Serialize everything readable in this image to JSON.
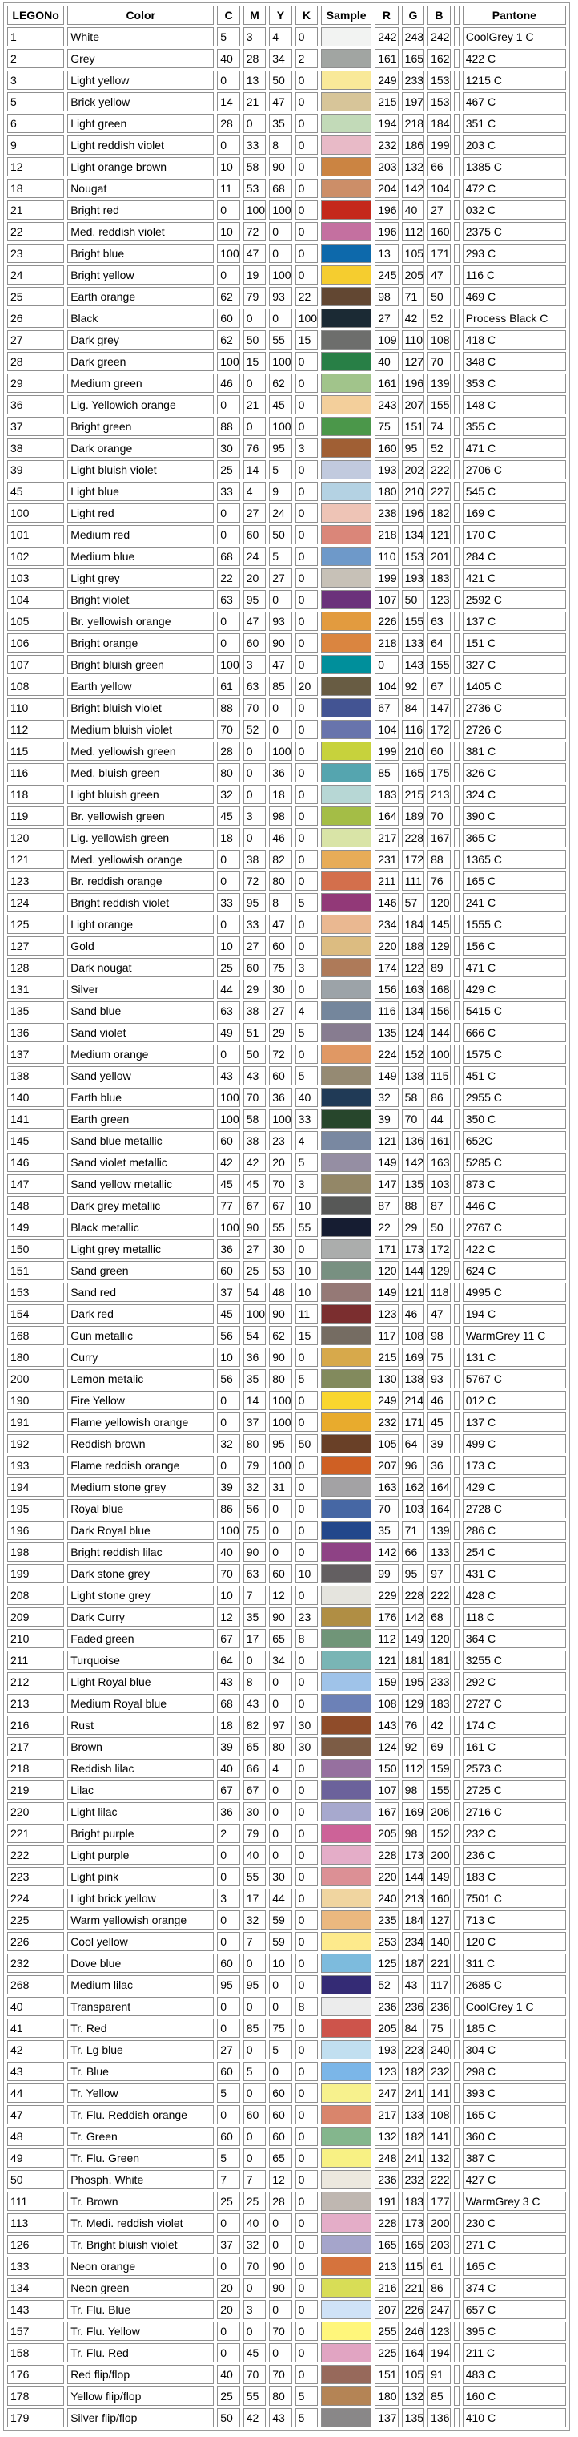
{
  "table": {
    "columns": [
      "LEGONo",
      "Color",
      "C",
      "M",
      "Y",
      "K",
      "Sample",
      "R",
      "G",
      "B",
      "",
      "Pantone"
    ],
    "rows": [
      [
        "1",
        "White",
        "5",
        "3",
        "4",
        "0",
        "242",
        "243",
        "242",
        "CoolGrey 1 C"
      ],
      [
        "2",
        "Grey",
        "40",
        "28",
        "34",
        "2",
        "161",
        "165",
        "162",
        "422 C"
      ],
      [
        "3",
        "Light yellow",
        "0",
        "13",
        "50",
        "0",
        "249",
        "233",
        "153",
        "1215 C"
      ],
      [
        "5",
        "Brick yellow",
        "14",
        "21",
        "47",
        "0",
        "215",
        "197",
        "153",
        "467 C"
      ],
      [
        "6",
        "Light green",
        "28",
        "0",
        "35",
        "0",
        "194",
        "218",
        "184",
        "351 C"
      ],
      [
        "9",
        "Light reddish violet",
        "0",
        "33",
        "8",
        "0",
        "232",
        "186",
        "199",
        "203 C"
      ],
      [
        "12",
        "Light orange brown",
        "10",
        "58",
        "90",
        "0",
        "203",
        "132",
        "66",
        "1385 C"
      ],
      [
        "18",
        "Nougat",
        "11",
        "53",
        "68",
        "0",
        "204",
        "142",
        "104",
        "472 C"
      ],
      [
        "21",
        "Bright red",
        "0",
        "100",
        "100",
        "0",
        "196",
        "40",
        "27",
        "032 C"
      ],
      [
        "22",
        "Med. reddish violet",
        "10",
        "72",
        "0",
        "0",
        "196",
        "112",
        "160",
        "2375 C"
      ],
      [
        "23",
        "Bright blue",
        "100",
        "47",
        "0",
        "0",
        "13",
        "105",
        "171",
        "293 C"
      ],
      [
        "24",
        "Bright yellow",
        "0",
        "19",
        "100",
        "0",
        "245",
        "205",
        "47",
        "116 C"
      ],
      [
        "25",
        "Earth orange",
        "62",
        "79",
        "93",
        "22",
        "98",
        "71",
        "50",
        "469 C"
      ],
      [
        "26",
        "Black",
        "60",
        "0",
        "0",
        "100",
        "27",
        "42",
        "52",
        "Process Black C"
      ],
      [
        "27",
        "Dark grey",
        "62",
        "50",
        "55",
        "15",
        "109",
        "110",
        "108",
        "418 C"
      ],
      [
        "28",
        "Dark green",
        "100",
        "15",
        "100",
        "0",
        "40",
        "127",
        "70",
        "348 C"
      ],
      [
        "29",
        "Medium green",
        "46",
        "0",
        "62",
        "0",
        "161",
        "196",
        "139",
        "353 C"
      ],
      [
        "36",
        "Lig. Yellowich orange",
        "0",
        "21",
        "45",
        "0",
        "243",
        "207",
        "155",
        "148 C"
      ],
      [
        "37",
        "Bright green",
        "88",
        "0",
        "100",
        "0",
        "75",
        "151",
        "74",
        "355 C"
      ],
      [
        "38",
        "Dark orange",
        "30",
        "76",
        "95",
        "3",
        "160",
        "95",
        "52",
        "471 C"
      ],
      [
        "39",
        "Light bluish violet",
        "25",
        "14",
        "5",
        "0",
        "193",
        "202",
        "222",
        "2706 C"
      ],
      [
        "45",
        "Light blue",
        "33",
        "4",
        "9",
        "0",
        "180",
        "210",
        "227",
        "545 C"
      ],
      [
        "100",
        "Light red",
        "0",
        "27",
        "24",
        "0",
        "238",
        "196",
        "182",
        "169 C"
      ],
      [
        "101",
        "Medium red",
        "0",
        "60",
        "50",
        "0",
        "218",
        "134",
        "121",
        "170 C"
      ],
      [
        "102",
        "Medium blue",
        "68",
        "24",
        "5",
        "0",
        "110",
        "153",
        "201",
        "284 C"
      ],
      [
        "103",
        "Light grey",
        "22",
        "20",
        "27",
        "0",
        "199",
        "193",
        "183",
        "421 C"
      ],
      [
        "104",
        "Bright violet",
        "63",
        "95",
        "0",
        "0",
        "107",
        "50",
        "123",
        "2592 C"
      ],
      [
        "105",
        "Br. yellowish orange",
        "0",
        "47",
        "93",
        "0",
        "226",
        "155",
        "63",
        "137 C"
      ],
      [
        "106",
        "Bright orange",
        "0",
        "60",
        "90",
        "0",
        "218",
        "133",
        "64",
        "151 C"
      ],
      [
        "107",
        "Bright bluish green",
        "100",
        "3",
        "47",
        "0",
        "0",
        "143",
        "155",
        "327 C"
      ],
      [
        "108",
        "Earth yellow",
        "61",
        "63",
        "85",
        "20",
        "104",
        "92",
        "67",
        "1405 C"
      ],
      [
        "110",
        "Bright bluish violet",
        "88",
        "70",
        "0",
        "0",
        "67",
        "84",
        "147",
        "2736 C"
      ],
      [
        "112",
        "Medium bluish violet",
        "70",
        "52",
        "0",
        "0",
        "104",
        "116",
        "172",
        "2726 C"
      ],
      [
        "115",
        "Med. yellowish green",
        "28",
        "0",
        "100",
        "0",
        "199",
        "210",
        "60",
        "381 C"
      ],
      [
        "116",
        "Med. bluish green",
        "80",
        "0",
        "36",
        "0",
        "85",
        "165",
        "175",
        "326 C"
      ],
      [
        "118",
        "Light bluish green",
        "32",
        "0",
        "18",
        "0",
        "183",
        "215",
        "213",
        "324 C"
      ],
      [
        "119",
        "Br. yellowish green",
        "45",
        "3",
        "98",
        "0",
        "164",
        "189",
        "70",
        "390 C"
      ],
      [
        "120",
        "Lig. yellowish green",
        "18",
        "0",
        "46",
        "0",
        "217",
        "228",
        "167",
        "365 C"
      ],
      [
        "121",
        "Med. yellowish orange",
        "0",
        "38",
        "82",
        "0",
        "231",
        "172",
        "88",
        "1365 C"
      ],
      [
        "123",
        "Br. reddish orange",
        "0",
        "72",
        "80",
        "0",
        "211",
        "111",
        "76",
        "165 C"
      ],
      [
        "124",
        "Bright reddish violet",
        "33",
        "95",
        "8",
        "5",
        "146",
        "57",
        "120",
        "241 C"
      ],
      [
        "125",
        "Light orange",
        "0",
        "33",
        "47",
        "0",
        "234",
        "184",
        "145",
        "1555 C"
      ],
      [
        "127",
        "Gold",
        "10",
        "27",
        "60",
        "0",
        "220",
        "188",
        "129",
        "156 C"
      ],
      [
        "128",
        "Dark nougat",
        "25",
        "60",
        "75",
        "3",
        "174",
        "122",
        "89",
        "471 C"
      ],
      [
        "131",
        "Silver",
        "44",
        "29",
        "30",
        "0",
        "156",
        "163",
        "168",
        "429 C"
      ],
      [
        "135",
        "Sand blue",
        "63",
        "38",
        "27",
        "4",
        "116",
        "134",
        "156",
        "5415 C"
      ],
      [
        "136",
        "Sand violet",
        "49",
        "51",
        "29",
        "5",
        "135",
        "124",
        "144",
        "666 C"
      ],
      [
        "137",
        "Medium orange",
        "0",
        "50",
        "72",
        "0",
        "224",
        "152",
        "100",
        "1575 C"
      ],
      [
        "138",
        "Sand yellow",
        "43",
        "43",
        "60",
        "5",
        "149",
        "138",
        "115",
        "451 C"
      ],
      [
        "140",
        "Earth blue",
        "100",
        "70",
        "36",
        "40",
        "32",
        "58",
        "86",
        "2955 C"
      ],
      [
        "141",
        "Earth green",
        "100",
        "58",
        "100",
        "33",
        "39",
        "70",
        "44",
        "350 C"
      ],
      [
        "145",
        "Sand blue metallic",
        "60",
        "38",
        "23",
        "4",
        "121",
        "136",
        "161",
        "652C"
      ],
      [
        "146",
        "Sand violet metallic",
        "42",
        "42",
        "20",
        "5",
        "149",
        "142",
        "163",
        "5285 C"
      ],
      [
        "147",
        "Sand yellow metallic",
        "45",
        "45",
        "70",
        "3",
        "147",
        "135",
        "103",
        "873 C"
      ],
      [
        "148",
        "Dark grey metallic",
        "77",
        "67",
        "67",
        "10",
        "87",
        "88",
        "87",
        "446 C"
      ],
      [
        "149",
        "Black metallic",
        "100",
        "90",
        "55",
        "55",
        "22",
        "29",
        "50",
        "2767 C"
      ],
      [
        "150",
        "Light grey metallic",
        "36",
        "27",
        "30",
        "0",
        "171",
        "173",
        "172",
        "422 C"
      ],
      [
        "151",
        "Sand green",
        "60",
        "25",
        "53",
        "10",
        "120",
        "144",
        "129",
        "624 C"
      ],
      [
        "153",
        "Sand red",
        "37",
        "54",
        "48",
        "10",
        "149",
        "121",
        "118",
        "4995 C"
      ],
      [
        "154",
        "Dark red",
        "45",
        "100",
        "90",
        "11",
        "123",
        "46",
        "47",
        "194 C"
      ],
      [
        "168",
        "Gun metallic",
        "56",
        "54",
        "62",
        "15",
        "117",
        "108",
        "98",
        "WarmGrey 11 C"
      ],
      [
        "180",
        "Curry",
        "10",
        "36",
        "90",
        "0",
        "215",
        "169",
        "75",
        "131 C"
      ],
      [
        "200",
        "Lemon metalic",
        "56",
        "35",
        "80",
        "5",
        "130",
        "138",
        "93",
        "5767 C"
      ],
      [
        "190",
        "Fire Yellow",
        "0",
        "14",
        "100",
        "0",
        "249",
        "214",
        "46",
        "012 C"
      ],
      [
        "191",
        "Flame yellowish orange",
        "0",
        "37",
        "100",
        "0",
        "232",
        "171",
        "45",
        "137 C"
      ],
      [
        "192",
        "Reddish brown",
        "32",
        "80",
        "95",
        "50",
        "105",
        "64",
        "39",
        "499 C"
      ],
      [
        "193",
        "Flame reddish orange",
        "0",
        "79",
        "100",
        "0",
        "207",
        "96",
        "36",
        "173 C"
      ],
      [
        "194",
        "Medium stone grey",
        "39",
        "32",
        "31",
        "0",
        "163",
        "162",
        "164",
        "429 C"
      ],
      [
        "195",
        "Royal blue",
        "86",
        "56",
        "0",
        "0",
        "70",
        "103",
        "164",
        "2728 C"
      ],
      [
        "196",
        "Dark Royal blue",
        "100",
        "75",
        "0",
        "0",
        "35",
        "71",
        "139",
        "286 C"
      ],
      [
        "198",
        "Bright reddish lilac",
        "40",
        "90",
        "0",
        "0",
        "142",
        "66",
        "133",
        "254 C"
      ],
      [
        "199",
        "Dark stone grey",
        "70",
        "63",
        "60",
        "10",
        "99",
        "95",
        "97",
        "431 C"
      ],
      [
        "208",
        "Light stone grey",
        "10",
        "7",
        "12",
        "0",
        "229",
        "228",
        "222",
        "428 C"
      ],
      [
        "209",
        "Dark Curry",
        "12",
        "35",
        "90",
        "23",
        "176",
        "142",
        "68",
        "118 C"
      ],
      [
        "210",
        "Faded green",
        "67",
        "17",
        "65",
        "8",
        "112",
        "149",
        "120",
        "364 C"
      ],
      [
        "211",
        "Turquoise",
        "64",
        "0",
        "34",
        "0",
        "121",
        "181",
        "181",
        "3255 C"
      ],
      [
        "212",
        "Light Royal blue",
        "43",
        "8",
        "0",
        "0",
        "159",
        "195",
        "233",
        "292 C"
      ],
      [
        "213",
        "Medium Royal blue",
        "68",
        "43",
        "0",
        "0",
        "108",
        "129",
        "183",
        "2727 C"
      ],
      [
        "216",
        "Rust",
        "18",
        "82",
        "97",
        "30",
        "143",
        "76",
        "42",
        "174 C"
      ],
      [
        "217",
        "Brown",
        "39",
        "65",
        "80",
        "30",
        "124",
        "92",
        "69",
        "161 C"
      ],
      [
        "218",
        "Reddish lilac",
        "40",
        "66",
        "4",
        "0",
        "150",
        "112",
        "159",
        "2573 C"
      ],
      [
        "219",
        "Lilac",
        "67",
        "67",
        "0",
        "0",
        "107",
        "98",
        "155",
        "2725 C"
      ],
      [
        "220",
        "Light lilac",
        "36",
        "30",
        "0",
        "0",
        "167",
        "169",
        "206",
        "2716 C"
      ],
      [
        "221",
        "Bright purple",
        "2",
        "79",
        "0",
        "0",
        "205",
        "98",
        "152",
        "232 C"
      ],
      [
        "222",
        "Light purple",
        "0",
        "40",
        "0",
        "0",
        "228",
        "173",
        "200",
        "236 C"
      ],
      [
        "223",
        "Light pink",
        "0",
        "55",
        "30",
        "0",
        "220",
        "144",
        "149",
        "183 C"
      ],
      [
        "224",
        "Light brick yellow",
        "3",
        "17",
        "44",
        "0",
        "240",
        "213",
        "160",
        "7501 C"
      ],
      [
        "225",
        "Warm yellowish orange",
        "0",
        "32",
        "59",
        "0",
        "235",
        "184",
        "127",
        "713 C"
      ],
      [
        "226",
        "Cool yellow",
        "0",
        "7",
        "59",
        "0",
        "253",
        "234",
        "140",
        "120 C"
      ],
      [
        "232",
        "Dove blue",
        "60",
        "0",
        "10",
        "0",
        "125",
        "187",
        "221",
        "311 C"
      ],
      [
        "268",
        "Medium lilac",
        "95",
        "95",
        "0",
        "0",
        "52",
        "43",
        "117",
        "2685 C"
      ],
      [
        "40",
        "Transparent",
        "0",
        "0",
        "0",
        "8",
        "236",
        "236",
        "236",
        "CoolGrey 1 C"
      ],
      [
        "41",
        "Tr. Red",
        "0",
        "85",
        "75",
        "0",
        "205",
        "84",
        "75",
        "185 C"
      ],
      [
        "42",
        "Tr. Lg blue",
        "27",
        "0",
        "5",
        "0",
        "193",
        "223",
        "240",
        "304 C"
      ],
      [
        "43",
        "Tr. Blue",
        "60",
        "5",
        "0",
        "0",
        "123",
        "182",
        "232",
        "298 C"
      ],
      [
        "44",
        "Tr. Yellow",
        "5",
        "0",
        "60",
        "0",
        "247",
        "241",
        "141",
        "393 C"
      ],
      [
        "47",
        "Tr. Flu. Reddish orange",
        "0",
        "60",
        "60",
        "0",
        "217",
        "133",
        "108",
        "165 C"
      ],
      [
        "48",
        "Tr. Green",
        "60",
        "0",
        "60",
        "0",
        "132",
        "182",
        "141",
        "360 C"
      ],
      [
        "49",
        "Tr. Flu. Green",
        "5",
        "0",
        "65",
        "0",
        "248",
        "241",
        "132",
        "387 C"
      ],
      [
        "50",
        "Phosph. White",
        "7",
        "7",
        "12",
        "0",
        "236",
        "232",
        "222",
        "427 C"
      ],
      [
        "111",
        "Tr. Brown",
        "25",
        "25",
        "28",
        "0",
        "191",
        "183",
        "177",
        "WarmGrey 3 C"
      ],
      [
        "113",
        "Tr. Medi. reddish violet",
        "0",
        "40",
        "0",
        "0",
        "228",
        "173",
        "200",
        "230 C"
      ],
      [
        "126",
        "Tr. Bright bluish violet",
        "37",
        "32",
        "0",
        "0",
        "165",
        "165",
        "203",
        "271 C"
      ],
      [
        "133",
        "Neon orange",
        "0",
        "70",
        "90",
        "0",
        "213",
        "115",
        "61",
        "165 C"
      ],
      [
        "134",
        "Neon green",
        "20",
        "0",
        "90",
        "0",
        "216",
        "221",
        "86",
        "374 C"
      ],
      [
        "143",
        "Tr. Flu. Blue",
        "20",
        "3",
        "0",
        "0",
        "207",
        "226",
        "247",
        "657 C"
      ],
      [
        "157",
        "Tr. Flu. Yellow",
        "0",
        "0",
        "70",
        "0",
        "255",
        "246",
        "123",
        "395 C"
      ],
      [
        "158",
        "Tr. Flu. Red",
        "0",
        "45",
        "0",
        "0",
        "225",
        "164",
        "194",
        "211 C"
      ],
      [
        "176",
        "Red flip/flop",
        "40",
        "70",
        "70",
        "0",
        "151",
        "105",
        "91",
        "483 C"
      ],
      [
        "178",
        "Yellow flip/flop",
        "25",
        "55",
        "80",
        "5",
        "180",
        "132",
        "85",
        "160 C"
      ],
      [
        "179",
        "Silver flip/flop",
        "50",
        "42",
        "43",
        "5",
        "137",
        "135",
        "136",
        "410 C"
      ]
    ]
  }
}
